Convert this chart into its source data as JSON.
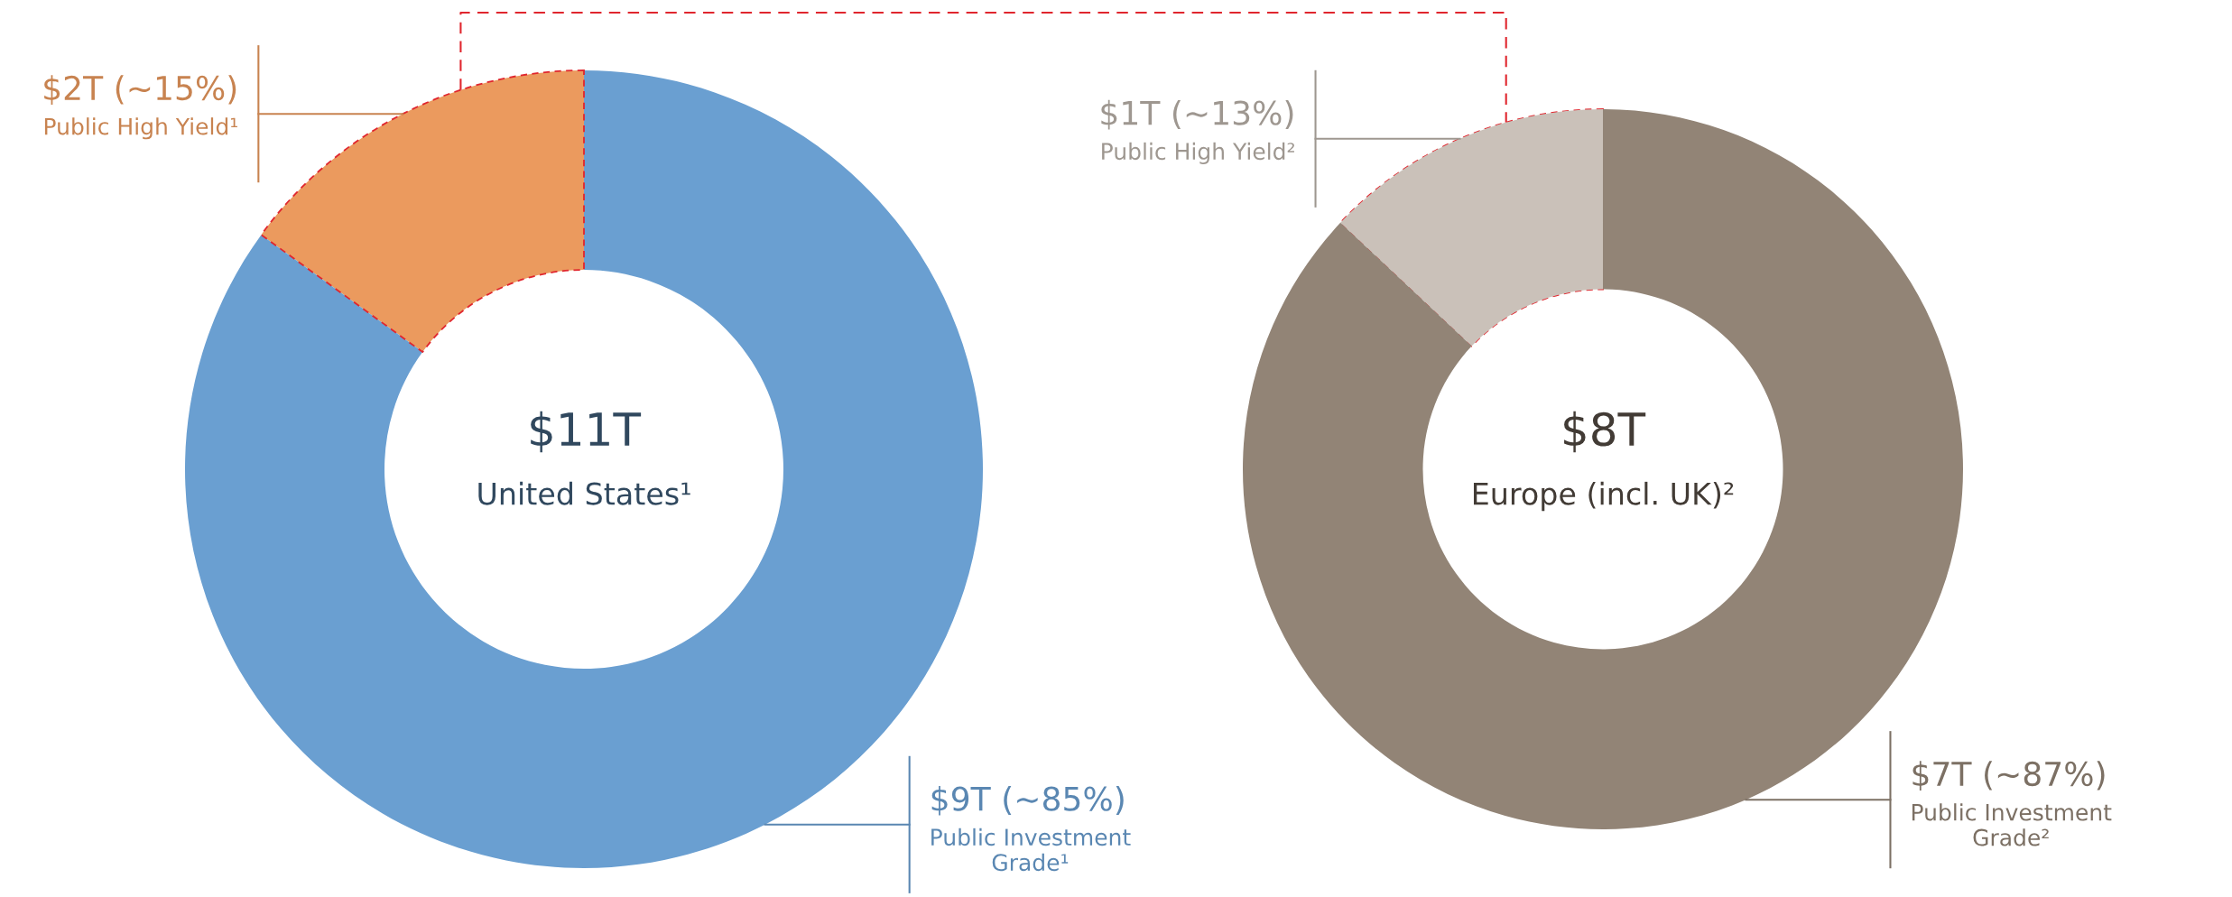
{
  "chart_data": [
    {
      "type": "donut",
      "categories": [
        "Public High Yield¹",
        "Public Investment Grade¹"
      ],
      "values": [
        15,
        85
      ],
      "colors": [
        "#eb9a5e",
        "#6a9fd1"
      ],
      "value_labels": [
        "$2T (~15%)",
        "$9T (~85%)"
      ],
      "annotations": [
        "$11T",
        "United States¹"
      ]
    },
    {
      "type": "donut",
      "categories": [
        "Public High Yield²",
        "Public Investment Grade²"
      ],
      "values": [
        13,
        87
      ],
      "colors": [
        "#cac1b9",
        "#928476"
      ],
      "value_labels": [
        "$1T (~13%)",
        "$7T (~87%)"
      ],
      "annotations": [
        "$8T",
        "Europe (incl. UK)²"
      ]
    }
  ]
}
